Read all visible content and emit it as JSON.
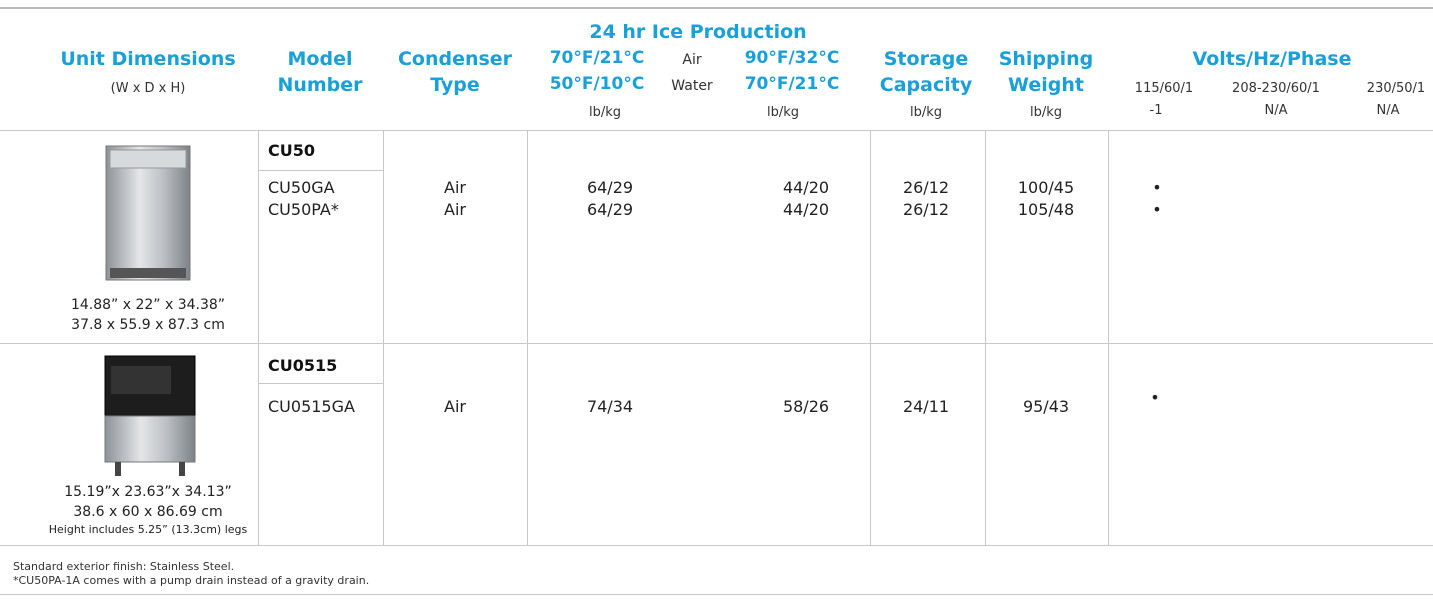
{
  "header": {
    "unit_dimensions": {
      "title": "Unit Dimensions",
      "sub": "(W x D x H)"
    },
    "model_number": {
      "line1": "Model",
      "line2": "Number"
    },
    "condenser": {
      "line1": "Condenser",
      "line2": "Type"
    },
    "ice_production": {
      "title": "24 hr Ice Production",
      "row1": [
        "70°F/21°C",
        "Air",
        "90°F/32°C"
      ],
      "row2": [
        "50°F/10°C",
        "Water",
        "70°F/21°C"
      ],
      "units": [
        "lb/kg",
        "lb/kg"
      ]
    },
    "storage": {
      "line1": "Storage",
      "line2": "Capacity",
      "unit": "lb/kg"
    },
    "shipping": {
      "line1": "Shipping",
      "line2": "Weight",
      "unit": "lb/kg"
    },
    "volts": {
      "title": "Volts/Hz/Phase",
      "columns": [
        "115/60/1",
        "208-230/60/1",
        "230/50/1"
      ],
      "subs": [
        "-1",
        "N/A",
        "N/A"
      ]
    }
  },
  "rows": [
    {
      "dimensions": [
        "14.88” x 22” x 34.38”",
        "37.8 x 55.9 x 87.3 cm"
      ],
      "family": "CU50",
      "models": [
        {
          "model": "CU50GA",
          "condenser": "Air",
          "ice_a": "64/29",
          "ice_b": "44/20",
          "storage": "26/12",
          "weight": "100/45",
          "v115": "•"
        },
        {
          "model": "CU50PA*",
          "condenser": "Air",
          "ice_a": "64/29",
          "ice_b": "44/20",
          "storage": "26/12",
          "weight": "105/48",
          "v115": "•"
        }
      ]
    },
    {
      "dimensions": [
        "15.19”x 23.63”x 34.13”",
        "38.6 x 60 x 86.69 cm",
        "Height includes 5.25” (13.3cm) legs"
      ],
      "family": "CU0515",
      "models": [
        {
          "model": "CU0515GA",
          "condenser": "Air",
          "ice_a": "74/34",
          "ice_b": "58/26",
          "storage": "24/11",
          "weight": "95/43",
          "v115": "•"
        }
      ]
    }
  ],
  "footnotes": [
    "Standard exterior finish: Stainless Steel.",
    "*CU50PA-1A comes with a pump drain instead of a gravity drain."
  ]
}
